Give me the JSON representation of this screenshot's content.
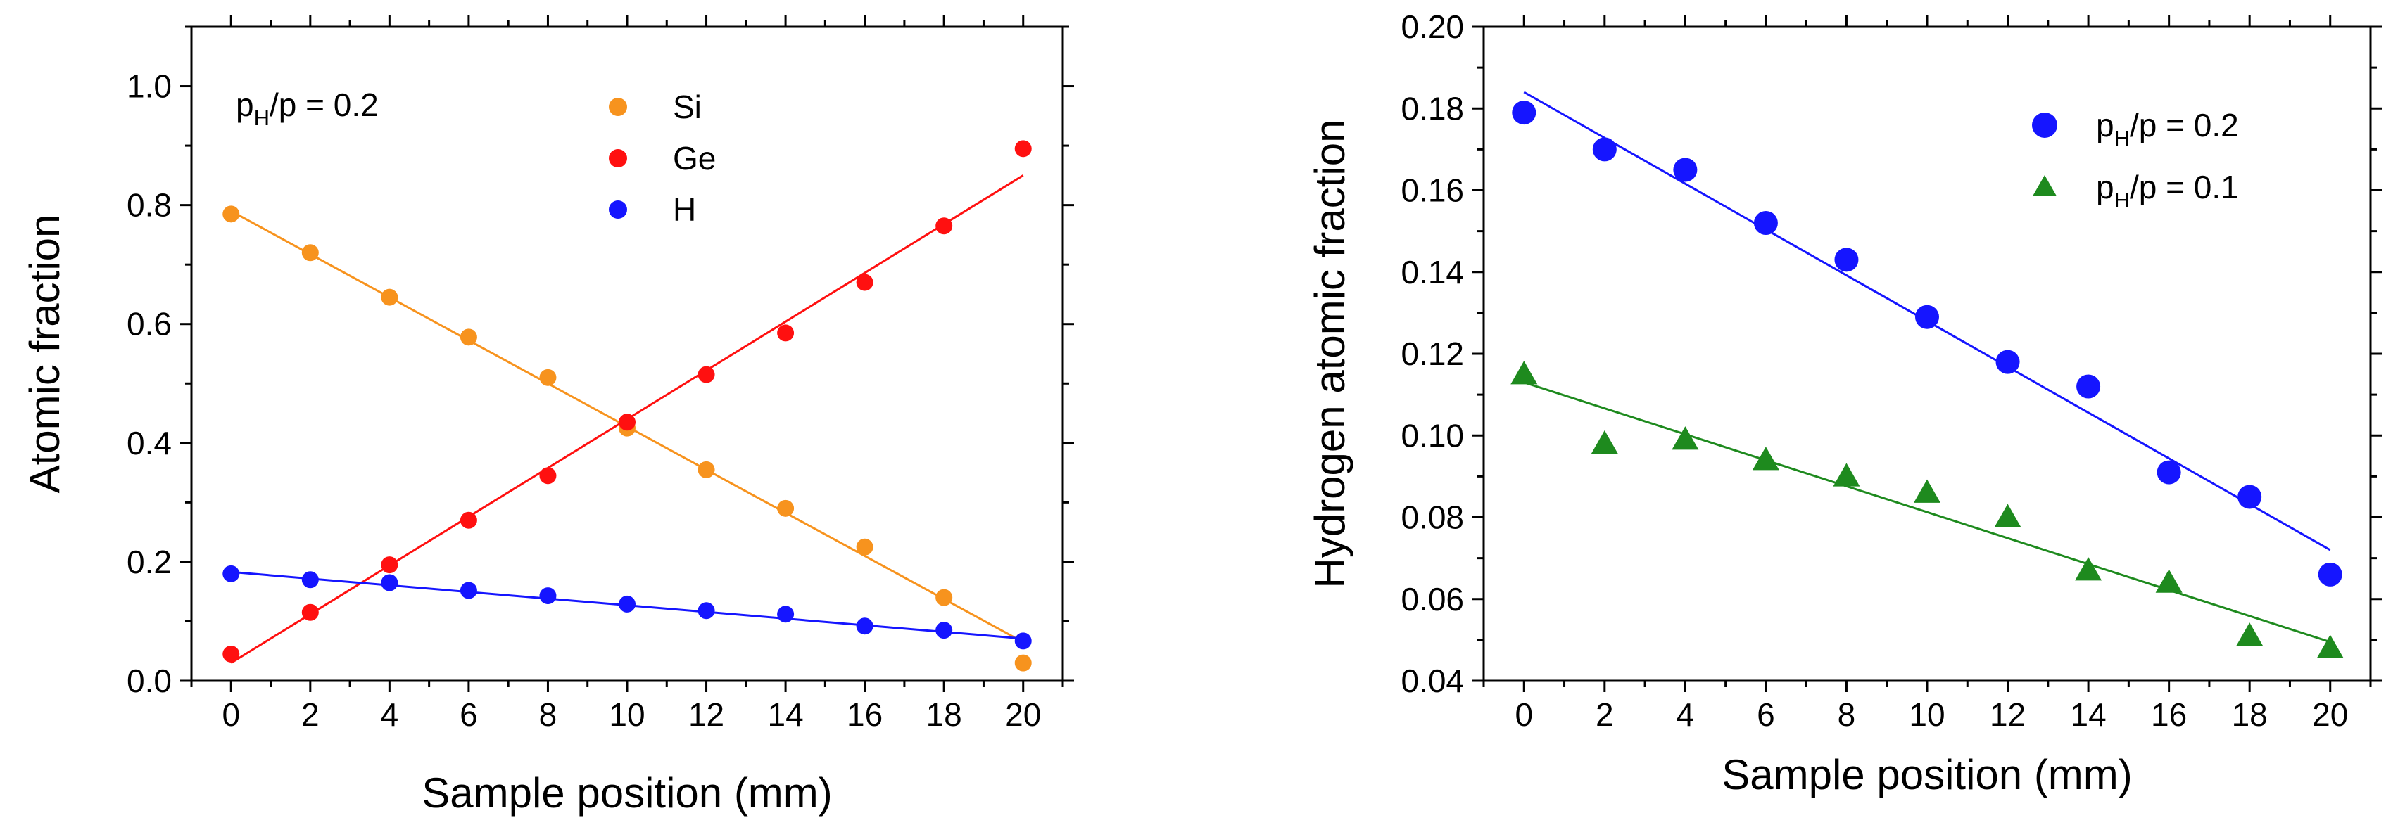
{
  "chart_data": [
    {
      "type": "scatter",
      "title": "",
      "xlabel": "Sample position (mm)",
      "ylabel": "Atomic fraction",
      "xlim": [
        -1,
        21
      ],
      "ylim": [
        0.0,
        1.1
      ],
      "xticks": [
        0,
        2,
        4,
        6,
        8,
        10,
        12,
        14,
        16,
        18,
        20
      ],
      "xtick_labels": [
        "0",
        "2",
        "4",
        "6",
        "8",
        "10",
        "12",
        "14",
        "16",
        "18",
        "20"
      ],
      "yticks": [
        0.0,
        0.2,
        0.4,
        0.6,
        0.8,
        1.0
      ],
      "ytick_labels": [
        "0.0",
        "0.2",
        "0.4",
        "0.6",
        "0.8",
        "1.0"
      ],
      "annotation": {
        "base": "p",
        "sub": "H",
        "rest": "/p = 0.2"
      },
      "legend": "top-center",
      "series": [
        {
          "name": "Si",
          "color": "#F7931E",
          "marker": "circle",
          "x": [
            0,
            2,
            4,
            6,
            8,
            10,
            12,
            14,
            16,
            18,
            20
          ],
          "y": [
            0.785,
            0.72,
            0.645,
            0.578,
            0.51,
            0.425,
            0.355,
            0.29,
            0.225,
            0.14,
            0.03
          ],
          "fit": [
            0.79,
            0.065
          ]
        },
        {
          "name": "Ge",
          "color": "#FF1010",
          "marker": "circle",
          "x": [
            0,
            2,
            4,
            6,
            8,
            10,
            12,
            14,
            16,
            18,
            20
          ],
          "y": [
            0.045,
            0.115,
            0.195,
            0.27,
            0.345,
            0.435,
            0.515,
            0.585,
            0.67,
            0.765,
            0.895
          ],
          "fit": [
            0.03,
            0.85
          ]
        },
        {
          "name": "H",
          "color": "#1515FF",
          "marker": "circle",
          "x": [
            0,
            2,
            4,
            6,
            8,
            10,
            12,
            14,
            16,
            18,
            20
          ],
          "y": [
            0.18,
            0.17,
            0.165,
            0.152,
            0.143,
            0.129,
            0.118,
            0.112,
            0.092,
            0.085,
            0.067
          ],
          "fit": [
            0.183,
            0.071
          ]
        }
      ]
    },
    {
      "type": "scatter",
      "title": "",
      "xlabel": "Sample position (mm)",
      "ylabel": "Hydrogen atomic fraction",
      "xlim": [
        -1,
        21
      ],
      "ylim": [
        0.04,
        0.2
      ],
      "xticks": [
        0,
        2,
        4,
        6,
        8,
        10,
        12,
        14,
        16,
        18,
        20
      ],
      "xtick_labels": [
        "0",
        "2",
        "4",
        "6",
        "8",
        "10",
        "12",
        "14",
        "16",
        "18",
        "20"
      ],
      "yticks": [
        0.04,
        0.06,
        0.08,
        0.1,
        0.12,
        0.14,
        0.16,
        0.18,
        0.2
      ],
      "ytick_labels": [
        "0.04",
        "0.06",
        "0.08",
        "0.10",
        "0.12",
        "0.14",
        "0.16",
        "0.18",
        "0.20"
      ],
      "legend": "top-right",
      "series": [
        {
          "name": "p_H/p = 0.2",
          "label_base": "p",
          "label_sub": "H",
          "label_rest": "/p = 0.2",
          "color": "#1515FF",
          "marker": "circle",
          "x": [
            0,
            2,
            4,
            6,
            8,
            10,
            12,
            14,
            16,
            18,
            20
          ],
          "y": [
            0.179,
            0.17,
            0.165,
            0.152,
            0.143,
            0.129,
            0.118,
            0.112,
            0.091,
            0.085,
            0.066
          ],
          "fit": [
            0.184,
            0.072
          ]
        },
        {
          "name": "p_H/p = 0.1",
          "label_base": "p",
          "label_sub": "H",
          "label_rest": "/p = 0.1",
          "color": "#1E8A1E",
          "marker": "triangle",
          "x": [
            0,
            2,
            4,
            6,
            8,
            10,
            12,
            14,
            16,
            18,
            20
          ],
          "y": [
            0.115,
            0.098,
            0.099,
            0.094,
            0.09,
            0.086,
            0.08,
            0.067,
            0.064,
            0.051,
            0.048
          ],
          "fit": [
            0.113,
            0.0495
          ]
        }
      ]
    }
  ]
}
